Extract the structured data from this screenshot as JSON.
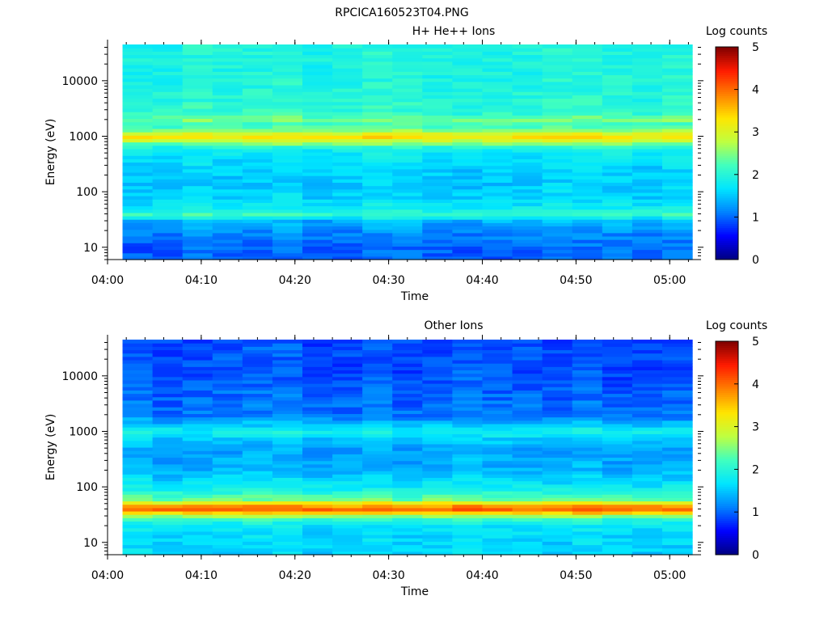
{
  "figure": {
    "title": "RPCICA160523T04.PNG"
  },
  "colormap": [
    "#00007f",
    "#0000ff",
    "#0080ff",
    "#00e5ff",
    "#40ffbf",
    "#bfff40",
    "#ffe500",
    "#ff8000",
    "#ff1a00",
    "#7f0000"
  ],
  "chart_data": [
    {
      "type": "heatmap",
      "title": "H+ He++ Ions",
      "xlabel": "Time",
      "ylabel": "Energy (eV)",
      "y_scale": "log",
      "xlim": [
        "04:00",
        "05:03"
      ],
      "ylim": [
        6,
        45000
      ],
      "x_ticks": [
        "04:00",
        "04:10",
        "04:20",
        "04:30",
        "04:40",
        "04:50",
        "05:00"
      ],
      "y_ticks": [
        "10",
        "100",
        "1000",
        "10000"
      ],
      "colorbar": {
        "label": "Log counts",
        "ticks": [
          "0",
          "1",
          "2",
          "3",
          "4",
          "5"
        ],
        "range": [
          0,
          5
        ]
      },
      "data_start": "04:01:36",
      "data_end": "05:02:24",
      "energy_profile_log_counts": [
        {
          "energy_eV": 6,
          "value": 1.0
        },
        {
          "energy_eV": 10,
          "value": 1.0
        },
        {
          "energy_eV": 20,
          "value": 1.2
        },
        {
          "energy_eV": 30,
          "value": 1.4
        },
        {
          "energy_eV": 40,
          "value": 2.2
        },
        {
          "energy_eV": 50,
          "value": 1.8
        },
        {
          "energy_eV": 80,
          "value": 1.6
        },
        {
          "energy_eV": 150,
          "value": 1.5
        },
        {
          "energy_eV": 300,
          "value": 1.6
        },
        {
          "energy_eV": 600,
          "value": 1.8
        },
        {
          "energy_eV": 800,
          "value": 2.7
        },
        {
          "energy_eV": 1000,
          "value": 3.4
        },
        {
          "energy_eV": 1250,
          "value": 2.6
        },
        {
          "energy_eV": 1600,
          "value": 2.1
        },
        {
          "energy_eV": 2000,
          "value": 2.5
        },
        {
          "energy_eV": 2600,
          "value": 2.1
        },
        {
          "energy_eV": 5000,
          "value": 2.0
        },
        {
          "energy_eV": 10000,
          "value": 1.95
        },
        {
          "energy_eV": 45000,
          "value": 1.95
        }
      ]
    },
    {
      "type": "heatmap",
      "title": "Other Ions",
      "xlabel": "Time",
      "ylabel": "Energy (eV)",
      "y_scale": "log",
      "xlim": [
        "04:00",
        "05:03"
      ],
      "ylim": [
        6,
        45000
      ],
      "x_ticks": [
        "04:00",
        "04:10",
        "04:20",
        "04:30",
        "04:40",
        "04:50",
        "05:00"
      ],
      "y_ticks": [
        "10",
        "100",
        "1000",
        "10000"
      ],
      "colorbar": {
        "label": "Log counts",
        "ticks": [
          "0",
          "1",
          "2",
          "3",
          "4",
          "5"
        ],
        "range": [
          0,
          5
        ]
      },
      "data_start": "04:01:36",
      "data_end": "05:02:24",
      "energy_profile_log_counts": [
        {
          "energy_eV": 6,
          "value": 1.6
        },
        {
          "energy_eV": 10,
          "value": 1.6
        },
        {
          "energy_eV": 20,
          "value": 1.7
        },
        {
          "energy_eV": 28,
          "value": 2.2
        },
        {
          "energy_eV": 35,
          "value": 3.6
        },
        {
          "energy_eV": 40,
          "value": 4.1
        },
        {
          "energy_eV": 48,
          "value": 3.6
        },
        {
          "energy_eV": 60,
          "value": 2.4
        },
        {
          "energy_eV": 100,
          "value": 1.8
        },
        {
          "energy_eV": 200,
          "value": 1.4
        },
        {
          "energy_eV": 500,
          "value": 1.3
        },
        {
          "energy_eV": 800,
          "value": 1.6
        },
        {
          "energy_eV": 1000,
          "value": 1.9
        },
        {
          "energy_eV": 1300,
          "value": 1.5
        },
        {
          "energy_eV": 2000,
          "value": 1.1
        },
        {
          "energy_eV": 5000,
          "value": 1.0
        },
        {
          "energy_eV": 10000,
          "value": 0.9
        },
        {
          "energy_eV": 45000,
          "value": 0.9
        }
      ]
    }
  ]
}
